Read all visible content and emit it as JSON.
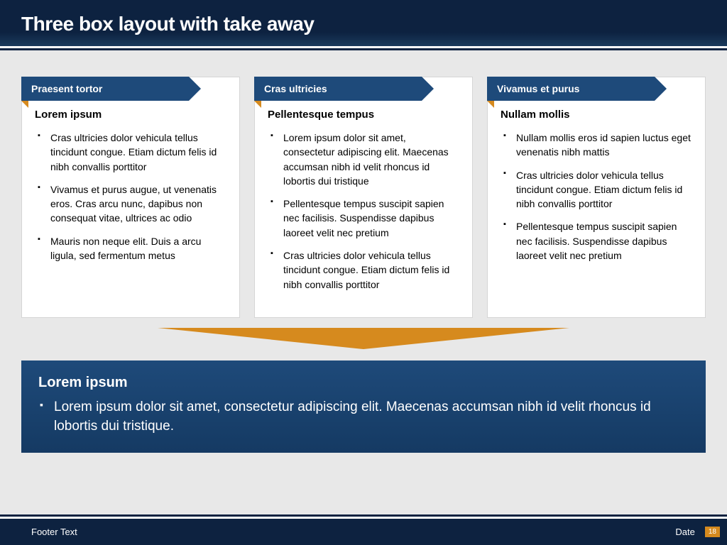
{
  "slide": {
    "title": "Three box layout with take away"
  },
  "boxes": [
    {
      "header": "Praesent tortor",
      "title": "Lorem ipsum",
      "bullets": [
        "Cras ultricies dolor vehicula tellus tincidunt congue. Etiam dictum felis id nibh convallis porttitor",
        "Vivamus et purus augue, ut venenatis eros. Cras arcu nunc, dapibus non consequat vitae, ultrices ac odio",
        "Mauris non neque elit. Duis a arcu ligula, sed fermentum metus"
      ]
    },
    {
      "header": "Cras ultricies",
      "title": "Pellentesque tempus",
      "bullets": [
        "Lorem ipsum dolor sit amet, consectetur adipiscing elit. Maecenas accumsan nibh id velit rhoncus id lobortis dui tristique",
        "Pellentesque tempus suscipit sapien nec facilisis. Suspendisse dapibus laoreet velit nec pretium",
        "Cras ultricies dolor vehicula tellus tincidunt congue. Etiam dictum felis id nibh convallis porttitor"
      ]
    },
    {
      "header": "Vivamus et purus",
      "title": "Nullam mollis",
      "bullets": [
        "Nullam mollis eros id sapien luctus eget venenatis nibh mattis",
        "Cras ultricies dolor vehicula tellus tincidunt congue. Etiam dictum felis id nibh convallis porttitor",
        "Pellentesque tempus suscipit sapien nec facilisis. Suspendisse dapibus laoreet velit nec pretium"
      ]
    }
  ],
  "takeaway": {
    "title": "Lorem ipsum",
    "text": "Lorem ipsum dolor sit amet, consectetur adipiscing elit. Maecenas accumsan nibh id velit rhoncus id lobortis dui tristique."
  },
  "footer": {
    "left": "Footer Text",
    "right": "Date",
    "page": "18"
  },
  "colors": {
    "header_bg": "#0d2240",
    "box_header_bg": "#1e4a7a",
    "accent_orange": "#d68a1e",
    "body_bg": "#e8e8e8",
    "box_bg": "#ffffff",
    "box_border": "#d5d5d5"
  }
}
